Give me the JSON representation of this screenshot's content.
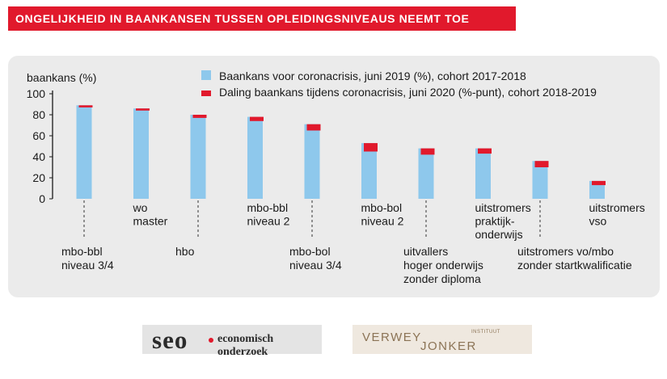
{
  "header": {
    "title": "ONGELIJKHEID IN BAANKANSEN TUSSEN OPLEIDINGSNIVEAUS NEEMT TOE"
  },
  "colors": {
    "accent": "#e1192c",
    "bar_blue": "#8ec8ec",
    "panel": "#ebebeb"
  },
  "chart_data": {
    "type": "bar",
    "ylabel": "baankans (%)",
    "ylim": [
      0,
      100
    ],
    "yticks": [
      0,
      20,
      40,
      60,
      80,
      100
    ],
    "grid": false,
    "legend_position": "top",
    "categories": [
      [
        "mbo-bbl",
        "niveau 3/4"
      ],
      [
        "wo",
        "master"
      ],
      [
        "hbo"
      ],
      [
        "mbo-bbl",
        "niveau 2"
      ],
      [
        "mbo-bol",
        "niveau 3/4"
      ],
      [
        "mbo-bol",
        "niveau 2"
      ],
      [
        "uitvallers",
        "hoger onderwijs",
        "zonder diploma"
      ],
      [
        "uitstromers",
        "praktijk-",
        "onderwijs"
      ],
      [
        "uitstromers vo/mbo",
        "zonder startkwalificatie"
      ],
      [
        "uitstromers",
        "vso"
      ]
    ],
    "label_placement": [
      "low",
      "high",
      "low",
      "high",
      "low",
      "high",
      "low",
      "high",
      "low",
      "high"
    ],
    "series": [
      {
        "name": "Baankans voor coronacrisis, juni 2019 (%), cohort 2017-2018",
        "color": "#8ec8ec",
        "values": [
          89,
          86,
          80,
          78,
          71,
          53,
          48,
          48,
          36,
          17
        ]
      },
      {
        "name": "Daling baankans tijdens coronacrisis, juni 2020 (%-punt), cohort 2018-2019",
        "color": "#e1192c",
        "values": [
          2,
          2,
          3,
          4,
          6,
          8,
          6,
          5,
          6,
          4
        ]
      }
    ]
  },
  "logos": {
    "seo_big": "seo",
    "seo_rest": "economisch onderzoek",
    "vj_a": "VERWEY",
    "vj_b": "JONKER",
    "vj_c": "INSTITUUT"
  }
}
